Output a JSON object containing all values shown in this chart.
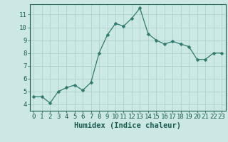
{
  "x": [
    0,
    1,
    2,
    3,
    4,
    5,
    6,
    7,
    8,
    9,
    10,
    11,
    12,
    13,
    14,
    15,
    16,
    17,
    18,
    19,
    20,
    21,
    22,
    23
  ],
  "y": [
    4.6,
    4.6,
    4.1,
    5.0,
    5.3,
    5.5,
    5.1,
    5.7,
    8.0,
    9.4,
    10.3,
    10.1,
    10.7,
    11.5,
    9.5,
    9.0,
    8.7,
    8.9,
    8.7,
    8.5,
    7.5,
    7.5,
    8.0,
    8.0
  ],
  "line_color": "#2e7b6e",
  "marker": "D",
  "marker_size": 2.5,
  "bg_color": "#cce8e4",
  "grid_color": "#aacfca",
  "title": "",
  "xlabel": "Humidex (Indice chaleur)",
  "ylabel": "",
  "xlim": [
    -0.5,
    23.5
  ],
  "ylim": [
    3.5,
    11.8
  ],
  "xticks": [
    0,
    1,
    2,
    3,
    4,
    5,
    6,
    7,
    8,
    9,
    10,
    11,
    12,
    13,
    14,
    15,
    16,
    17,
    18,
    19,
    20,
    21,
    22,
    23
  ],
  "yticks": [
    4,
    5,
    6,
    7,
    8,
    9,
    10,
    11
  ],
  "axis_label_color": "#1a5c52",
  "tick_label_color": "#1a5c52",
  "spine_color": "#1a5c52",
  "xlabel_fontsize": 7.5,
  "tick_fontsize": 6.5
}
